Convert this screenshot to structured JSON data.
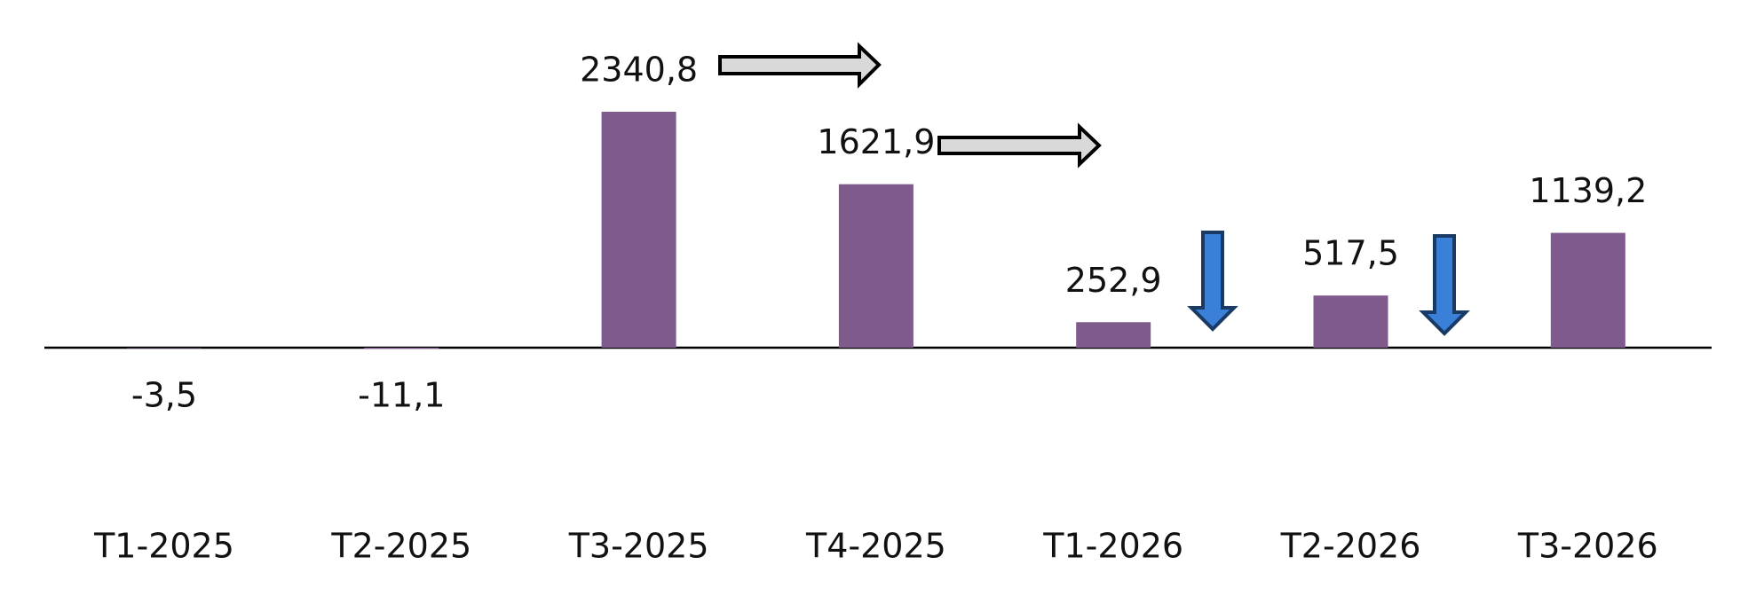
{
  "chart_data": {
    "type": "bar",
    "categories": [
      "T1-2025",
      "T2-2025",
      "T3-2025",
      "T4-2025",
      "T1-2026",
      "T2-2026",
      "T3-2026"
    ],
    "values": [
      -3.5,
      -11.1,
      2340.8,
      1621.9,
      252.9,
      517.5,
      1139.2
    ],
    "value_labels": [
      "-3,5",
      "-11,1",
      "2340,8",
      "1621,9",
      "252,9",
      "517,5",
      "1139,2"
    ],
    "color": "#7f5a8c"
  }
}
